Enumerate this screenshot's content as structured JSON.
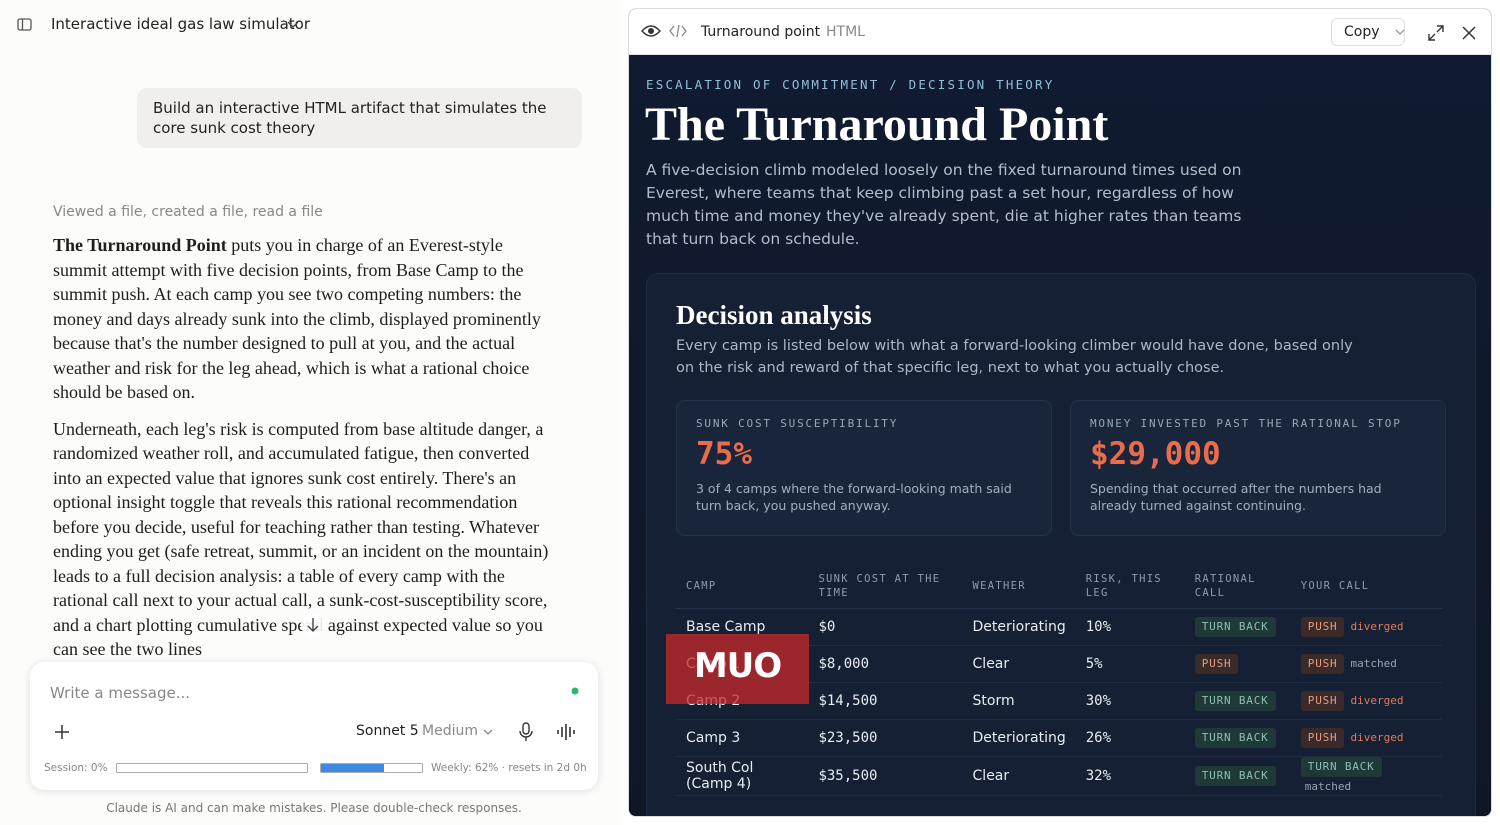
{
  "sidebar_header": {
    "title": "Interactive ideal gas law simulator"
  },
  "conversation": {
    "user_message": "Build an interactive HTML artifact that simulates the core sunk cost theory",
    "tool_status": "Viewed a file, created a file, read a file",
    "paragraphs": [
      {
        "bold": "The Turnaround Point",
        "text": " puts you in charge of an Everest-style summit attempt with five decision points, from Base Camp to the summit push. At each camp you see two competing numbers: the money and days already sunk into the climb, displayed prominently because that's the number designed to pull at you, and the actual weather and risk for the leg ahead, which is what a rational choice should be based on."
      },
      {
        "bold": "",
        "text": "Underneath, each leg's risk is computed from base altitude danger, a randomized weather roll, and accumulated fatigue, then converted into an expected value that ignores sunk cost entirely. There's an optional insight toggle that reveals this rational recommendation before you decide, useful for teaching rather than testing. Whatever ending you get (safe retreat, summit, or an incident on the mountain) leads to a full decision analysis: a table of every camp with the rational call next to your actual call, a sunk-cost-susceptibility score, and a chart plotting cumulative spend against expected value so you can see the two lines"
      }
    ]
  },
  "composer": {
    "placeholder": "Write a message...",
    "model": "Sonnet 5",
    "effort": "Medium",
    "usage": {
      "session": {
        "label": "Session: 0%",
        "value": 0
      },
      "weekly": {
        "label": "Weekly: 62% · resets in 2d 0h",
        "value": 62
      }
    }
  },
  "disclaimer": "Claude is AI and can make mistakes. Please double-check responses.",
  "artifact": {
    "header": {
      "title": "Turnaround point",
      "type": "HTML",
      "copy": "Copy"
    },
    "eyebrow": "ESCALATION OF COMMITMENT / DECISION THEORY",
    "title": "The Turnaround Point",
    "description": "A five-decision climb modeled loosely on the fixed turnaround times used on Everest, where teams that keep climbing past a set hour, regardless of how much time and money they've already spent, die at higher rates than teams that turn back on schedule.",
    "analysis": {
      "title": "Decision analysis",
      "description": "Every camp is listed below with what a forward-looking climber would have done, based only on the risk and reward of that specific leg, next to what you actually chose.",
      "stats": [
        {
          "label": "SUNK COST SUSCEPTIBILITY",
          "value": "75%",
          "description": "3 of 4 camps where the forward-looking math said turn back, you pushed anyway."
        },
        {
          "label": "MONEY INVESTED PAST THE RATIONAL STOP",
          "value": "$29,000",
          "description": "Spending that occurred after the numbers had already turned against continuing."
        }
      ],
      "table": {
        "headers": [
          "CAMP",
          "SUNK COST AT THE TIME",
          "WEATHER",
          "RISK, THIS LEG",
          "RATIONAL CALL",
          "YOUR CALL"
        ],
        "rows": [
          {
            "camp": "Base Camp",
            "sunk_cost": "$0",
            "weather": "Deteriorating",
            "risk": "10%",
            "rational": "TURN BACK",
            "your_call": "PUSH",
            "verdict": "diverged"
          },
          {
            "camp": "Camp 1",
            "sunk_cost": "$8,000",
            "weather": "Clear",
            "risk": "5%",
            "rational": "PUSH",
            "your_call": "PUSH",
            "verdict": "matched"
          },
          {
            "camp": "Camp 2",
            "sunk_cost": "$14,500",
            "weather": "Storm",
            "risk": "30%",
            "rational": "TURN BACK",
            "your_call": "PUSH",
            "verdict": "diverged"
          },
          {
            "camp": "Camp 3",
            "sunk_cost": "$23,500",
            "weather": "Deteriorating",
            "risk": "26%",
            "rational": "TURN BACK",
            "your_call": "PUSH",
            "verdict": "diverged"
          },
          {
            "camp": "South Col (Camp 4)",
            "sunk_cost": "$35,500",
            "weather": "Clear",
            "risk": "32%",
            "rational": "TURN BACK",
            "your_call": "TURN BACK",
            "verdict": "matched"
          }
        ],
        "badge_colors": {
          "TURN BACK": {
            "fg": "#8fbfb3",
            "bg": "#1f3838"
          },
          "PUSH": {
            "fg": "#e99b80",
            "bg": "#3a2a2a"
          }
        },
        "verdict_colors": {
          "diverged": "#e2795a",
          "matched": "#98a3b5"
        }
      }
    }
  },
  "watermark": "MUO"
}
